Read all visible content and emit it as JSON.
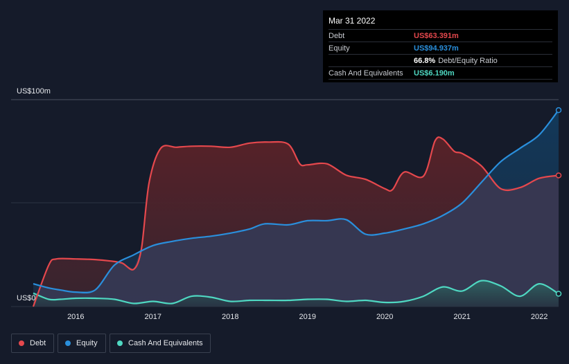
{
  "chart_data": {
    "type": "area",
    "title": "",
    "xlabel": "",
    "ylabel": "",
    "y_unit_label_top": "US$100m",
    "y_unit_label_bottom": "US$0",
    "ylim": [
      0,
      100
    ],
    "xlim": [
      2015.45,
      2022.25
    ],
    "x_ticks": [
      2016,
      2017,
      2018,
      2019,
      2020,
      2021,
      2022
    ],
    "x_tick_labels": [
      "2016",
      "2017",
      "2018",
      "2019",
      "2020",
      "2021",
      "2022"
    ],
    "series": [
      {
        "name": "Debt",
        "color": "#e5484d",
        "x": [
          2015.45,
          2015.65,
          2015.75,
          2016.0,
          2016.25,
          2016.45,
          2016.6,
          2016.75,
          2016.85,
          2016.95,
          2017.1,
          2017.3,
          2017.5,
          2017.75,
          2018.0,
          2018.25,
          2018.5,
          2018.75,
          2018.9,
          2019.0,
          2019.25,
          2019.5,
          2019.75,
          2020.0,
          2020.1,
          2020.25,
          2020.5,
          2020.65,
          2020.75,
          2020.9,
          2021.0,
          2021.25,
          2021.5,
          2021.75,
          2022.0,
          2022.25
        ],
        "values": [
          0,
          20,
          23,
          23,
          22.7,
          22,
          21,
          18,
          28,
          60,
          76.5,
          77,
          77.5,
          77.5,
          77,
          79,
          79.5,
          78.5,
          69,
          68.5,
          69,
          63.5,
          61.5,
          57,
          56.5,
          65,
          63,
          80,
          81,
          75,
          74,
          68,
          57,
          57.5,
          62,
          63.391
        ]
      },
      {
        "name": "Equity",
        "color": "#2a8fdc",
        "x": [
          2015.45,
          2015.65,
          2015.8,
          2016.0,
          2016.25,
          2016.5,
          2016.75,
          2017.0,
          2017.25,
          2017.5,
          2017.75,
          2018.0,
          2018.25,
          2018.45,
          2018.75,
          2019.0,
          2019.25,
          2019.5,
          2019.75,
          2020.0,
          2020.25,
          2020.5,
          2020.75,
          2021.0,
          2021.25,
          2021.5,
          2021.75,
          2022.0,
          2022.25
        ],
        "values": [
          11,
          9,
          8,
          7,
          8,
          20,
          25,
          29.5,
          31.5,
          33,
          34,
          35.5,
          37.5,
          40,
          39.5,
          41.5,
          41.5,
          42,
          35,
          35.5,
          37.5,
          40,
          44,
          50,
          60,
          70,
          76.5,
          83,
          94.937
        ]
      },
      {
        "name": "Cash And Equivalents",
        "color": "#4fd8c2",
        "x": [
          2015.45,
          2015.65,
          2015.8,
          2016.0,
          2016.25,
          2016.5,
          2016.75,
          2017.0,
          2017.25,
          2017.5,
          2017.75,
          2018.0,
          2018.25,
          2018.5,
          2018.75,
          2019.0,
          2019.25,
          2019.5,
          2019.75,
          2020.0,
          2020.25,
          2020.5,
          2020.75,
          2021.0,
          2021.25,
          2021.5,
          2021.75,
          2022.0,
          2022.25
        ],
        "values": [
          6.5,
          3.5,
          3.5,
          4,
          4,
          3.5,
          1.5,
          2.5,
          1.5,
          5,
          4.5,
          2.5,
          3,
          3,
          3,
          3.5,
          3.5,
          2.5,
          3,
          2,
          2.5,
          5,
          9.5,
          7.5,
          12.5,
          10,
          5,
          11,
          6.19
        ]
      }
    ],
    "tooltip": {
      "date": "Mar 31 2022",
      "rows": [
        {
          "label": "Debt",
          "value": "US$63.391m",
          "color": "#e5484d"
        },
        {
          "label": "Equity",
          "value": "US$94.937m",
          "color": "#2a8fdc"
        },
        {
          "label": "",
          "value": "66.8%",
          "suffix": "Debt/Equity Ratio",
          "color": "#ffffff"
        },
        {
          "label": "Cash And Equivalents",
          "value": "US$6.190m",
          "color": "#4fd8c2"
        }
      ]
    },
    "legend": [
      {
        "label": "Debt",
        "color": "#e5484d"
      },
      {
        "label": "Equity",
        "color": "#2a8fdc"
      },
      {
        "label": "Cash And Equivalents",
        "color": "#4fd8c2"
      }
    ],
    "legend_position": "bottom-left",
    "grid": true
  }
}
